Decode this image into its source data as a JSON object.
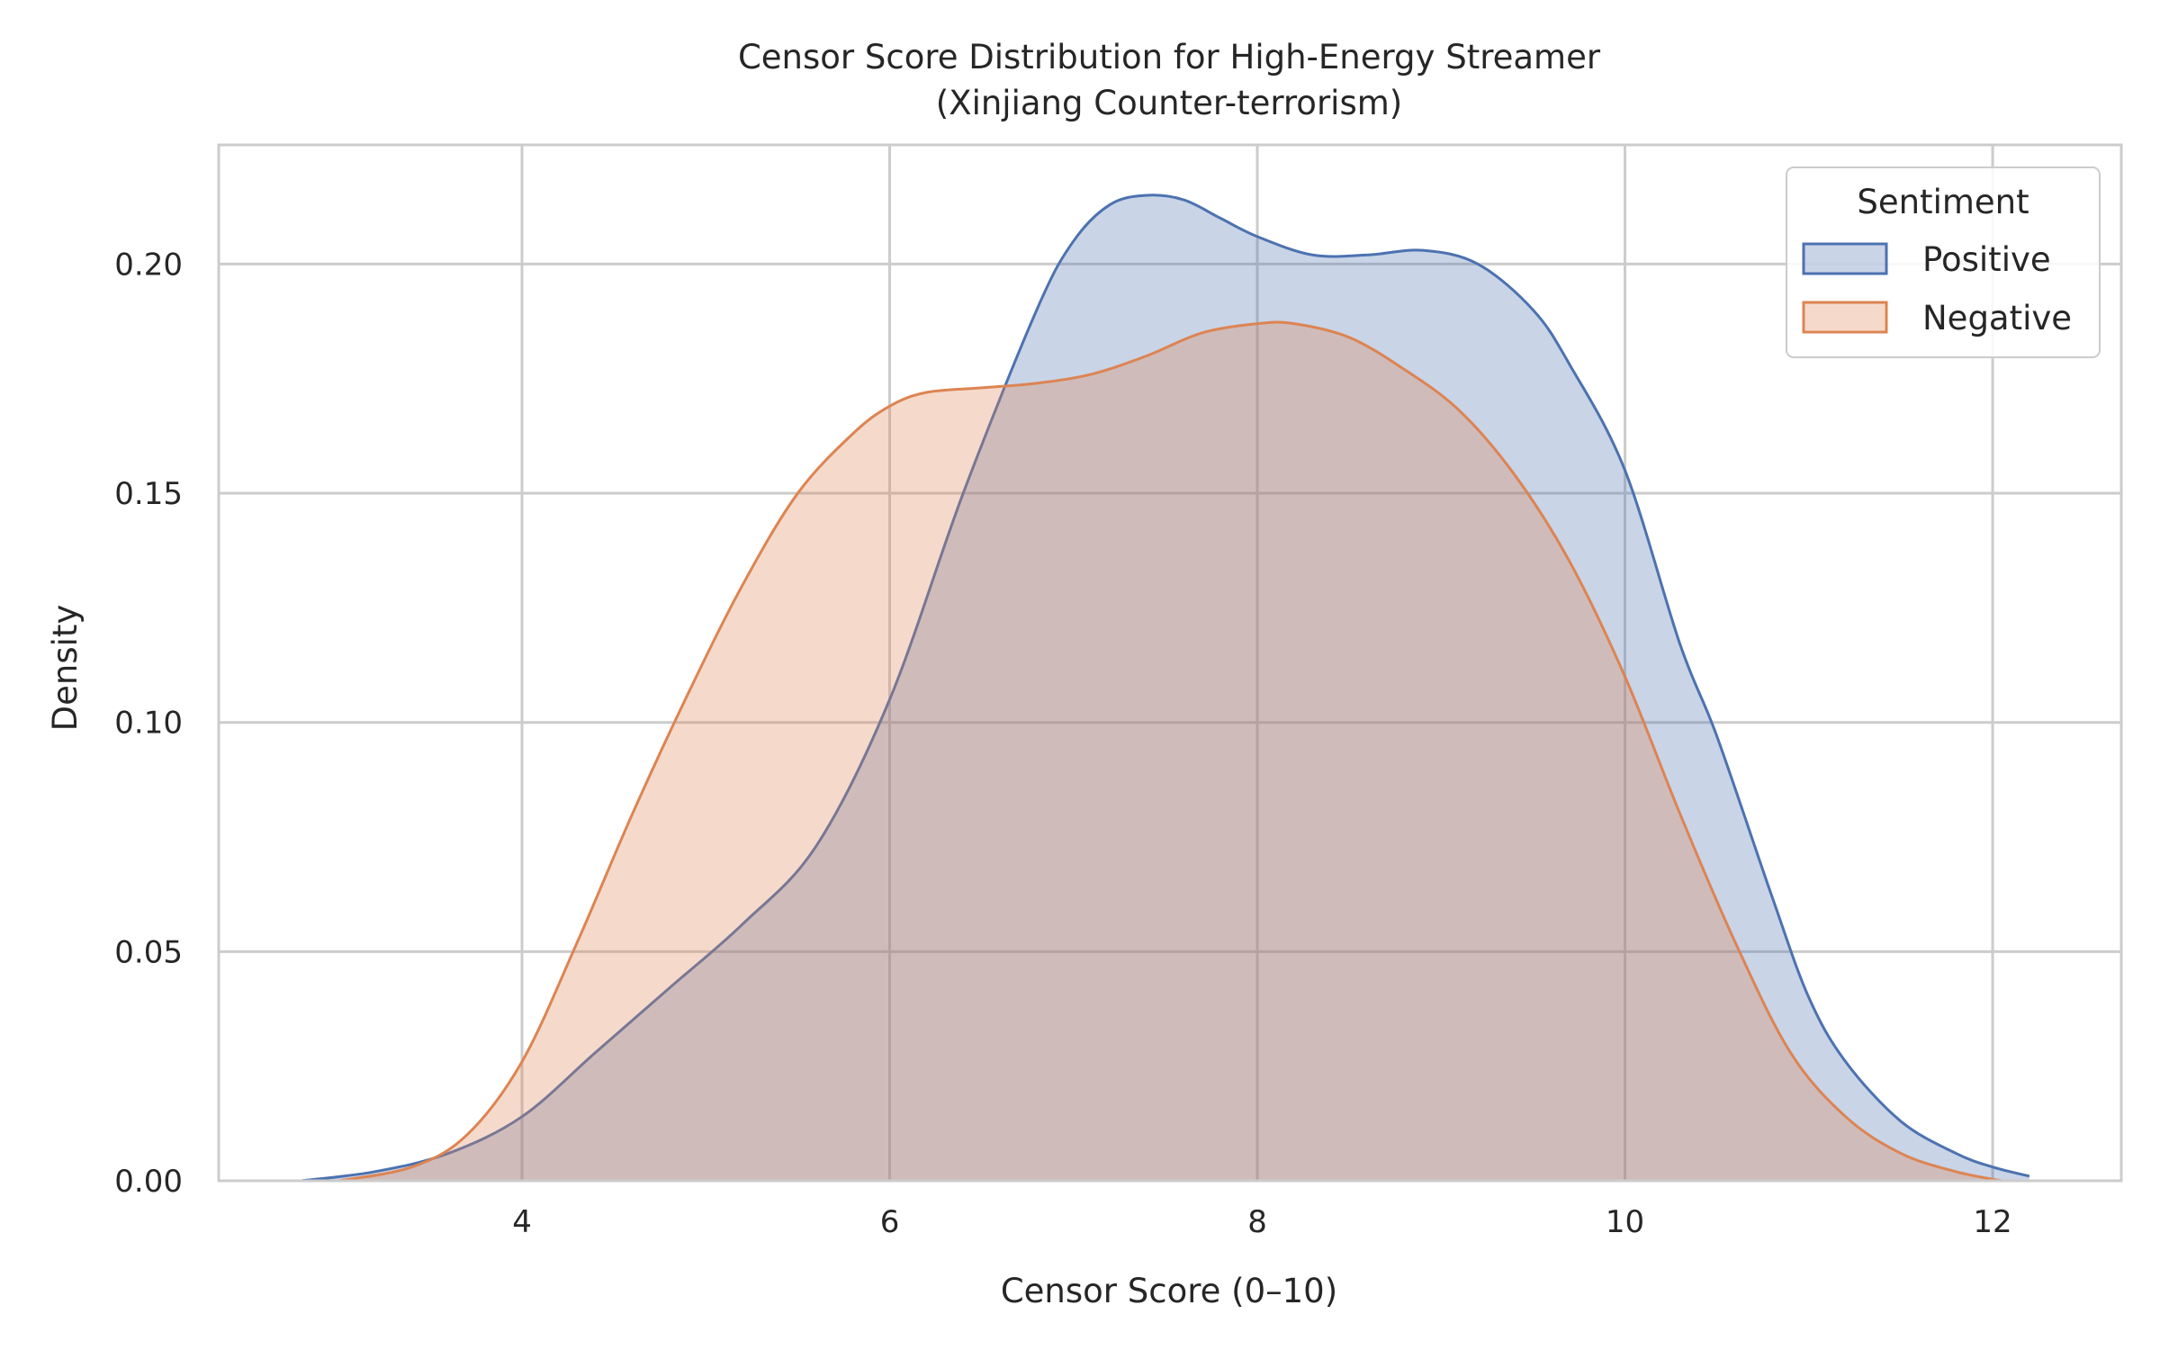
{
  "chart_data": {
    "type": "area",
    "title": "Censor Score Distribution for High-Energy Streamer",
    "subtitle": "(Xinjiang Counter-terrorism)",
    "xlabel": "Censor Score (0–10)",
    "ylabel": "Density",
    "xlim": [
      2.35,
      12.7
    ],
    "ylim": [
      0,
      0.226
    ],
    "x_ticks": [
      4,
      6,
      8,
      10,
      12
    ],
    "x_tick_labels": [
      "4",
      "6",
      "8",
      "10",
      "12"
    ],
    "y_ticks": [
      0,
      0.05,
      0.1,
      0.15,
      0.2
    ],
    "y_tick_labels": [
      "0.00",
      "0.05",
      "0.10",
      "0.15",
      "0.20"
    ],
    "grid": true,
    "legend": {
      "title": "Sentiment",
      "position": "top-right"
    },
    "series": [
      {
        "name": "Positive",
        "color": "#4c72b0",
        "x": [
          2.8,
          3.2,
          3.6,
          4.0,
          4.4,
          4.8,
          5.2,
          5.6,
          6.0,
          6.4,
          6.8,
          7.0,
          7.2,
          7.4,
          7.6,
          7.8,
          8.0,
          8.3,
          8.6,
          8.9,
          9.2,
          9.5,
          9.7,
          10.0,
          10.3,
          10.5,
          10.8,
          11.0,
          11.2,
          11.5,
          11.8,
          12.0,
          12.2
        ],
        "y": [
          0.0,
          0.002,
          0.006,
          0.014,
          0.028,
          0.042,
          0.056,
          0.073,
          0.105,
          0.15,
          0.19,
          0.205,
          0.213,
          0.215,
          0.214,
          0.21,
          0.206,
          0.202,
          0.202,
          0.203,
          0.2,
          0.19,
          0.178,
          0.155,
          0.117,
          0.097,
          0.062,
          0.04,
          0.026,
          0.013,
          0.006,
          0.003,
          0.001
        ]
      },
      {
        "name": "Negative",
        "color": "#dd8452",
        "x": [
          3.0,
          3.4,
          3.7,
          4.0,
          4.3,
          4.6,
          4.9,
          5.2,
          5.5,
          5.8,
          6.0,
          6.2,
          6.5,
          6.8,
          7.1,
          7.4,
          7.7,
          8.0,
          8.2,
          8.5,
          8.8,
          9.1,
          9.4,
          9.7,
          10.0,
          10.3,
          10.6,
          10.9,
          11.2,
          11.5,
          11.8,
          12.05
        ],
        "y": [
          0.0,
          0.003,
          0.01,
          0.026,
          0.052,
          0.08,
          0.106,
          0.13,
          0.15,
          0.163,
          0.169,
          0.172,
          0.173,
          0.174,
          0.176,
          0.18,
          0.185,
          0.187,
          0.187,
          0.184,
          0.177,
          0.168,
          0.154,
          0.135,
          0.11,
          0.08,
          0.052,
          0.028,
          0.014,
          0.006,
          0.002,
          0.0
        ]
      }
    ]
  }
}
